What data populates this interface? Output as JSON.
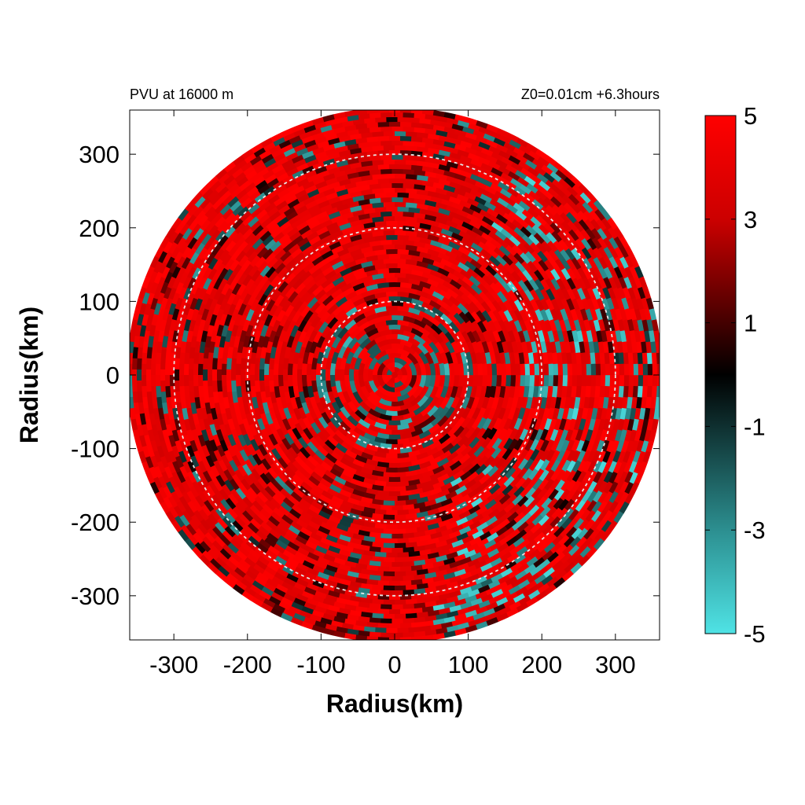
{
  "chart_data": {
    "type": "heatmap",
    "title_left": "PVU at 16000 m",
    "title_right": "Z0=0.01cm  +6.3hours",
    "xlabel": "Radius(km)",
    "ylabel": "Radius(km)",
    "xlim": [
      -360,
      360
    ],
    "ylim": [
      -360,
      360
    ],
    "x_ticks": [
      -300,
      -200,
      -100,
      0,
      100,
      200,
      300
    ],
    "y_ticks": [
      300,
      200,
      100,
      0,
      -100,
      -200,
      -300
    ],
    "x_tick_labels": [
      "-300",
      "-200",
      "-100",
      "0",
      "100",
      "200",
      "300"
    ],
    "y_tick_labels": [
      "300",
      "200",
      "100",
      "0",
      "-100",
      "-200",
      "-300"
    ],
    "domain_radius_km": 360,
    "reference_circles_km": [
      100,
      200,
      300
    ],
    "colorbar": {
      "range": [
        -5,
        5
      ],
      "ticks": [
        5,
        3,
        1,
        -1,
        -3,
        -5
      ],
      "tick_labels": [
        "5",
        "3",
        "1",
        "-1",
        "-3",
        "-5"
      ],
      "colors": {
        "min": "#4fe3e5",
        "mid": "#000000",
        "max": "#ff0000"
      }
    }
  }
}
